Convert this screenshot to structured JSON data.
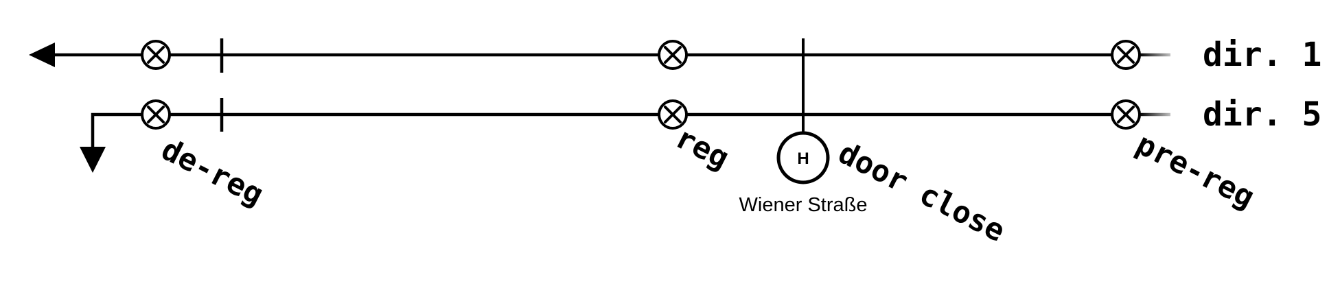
{
  "tracks": [
    {
      "label": "dir. 1"
    },
    {
      "label": "dir. 5"
    }
  ],
  "points": {
    "de_reg": "de-reg",
    "reg": "reg",
    "door_close": "door close",
    "pre_reg": "pre-reg"
  },
  "stop": {
    "symbol": "H",
    "name": "Wiener Straße"
  },
  "icons": [
    "detector-icon",
    "arrow-left-icon",
    "arrow-down-icon"
  ]
}
